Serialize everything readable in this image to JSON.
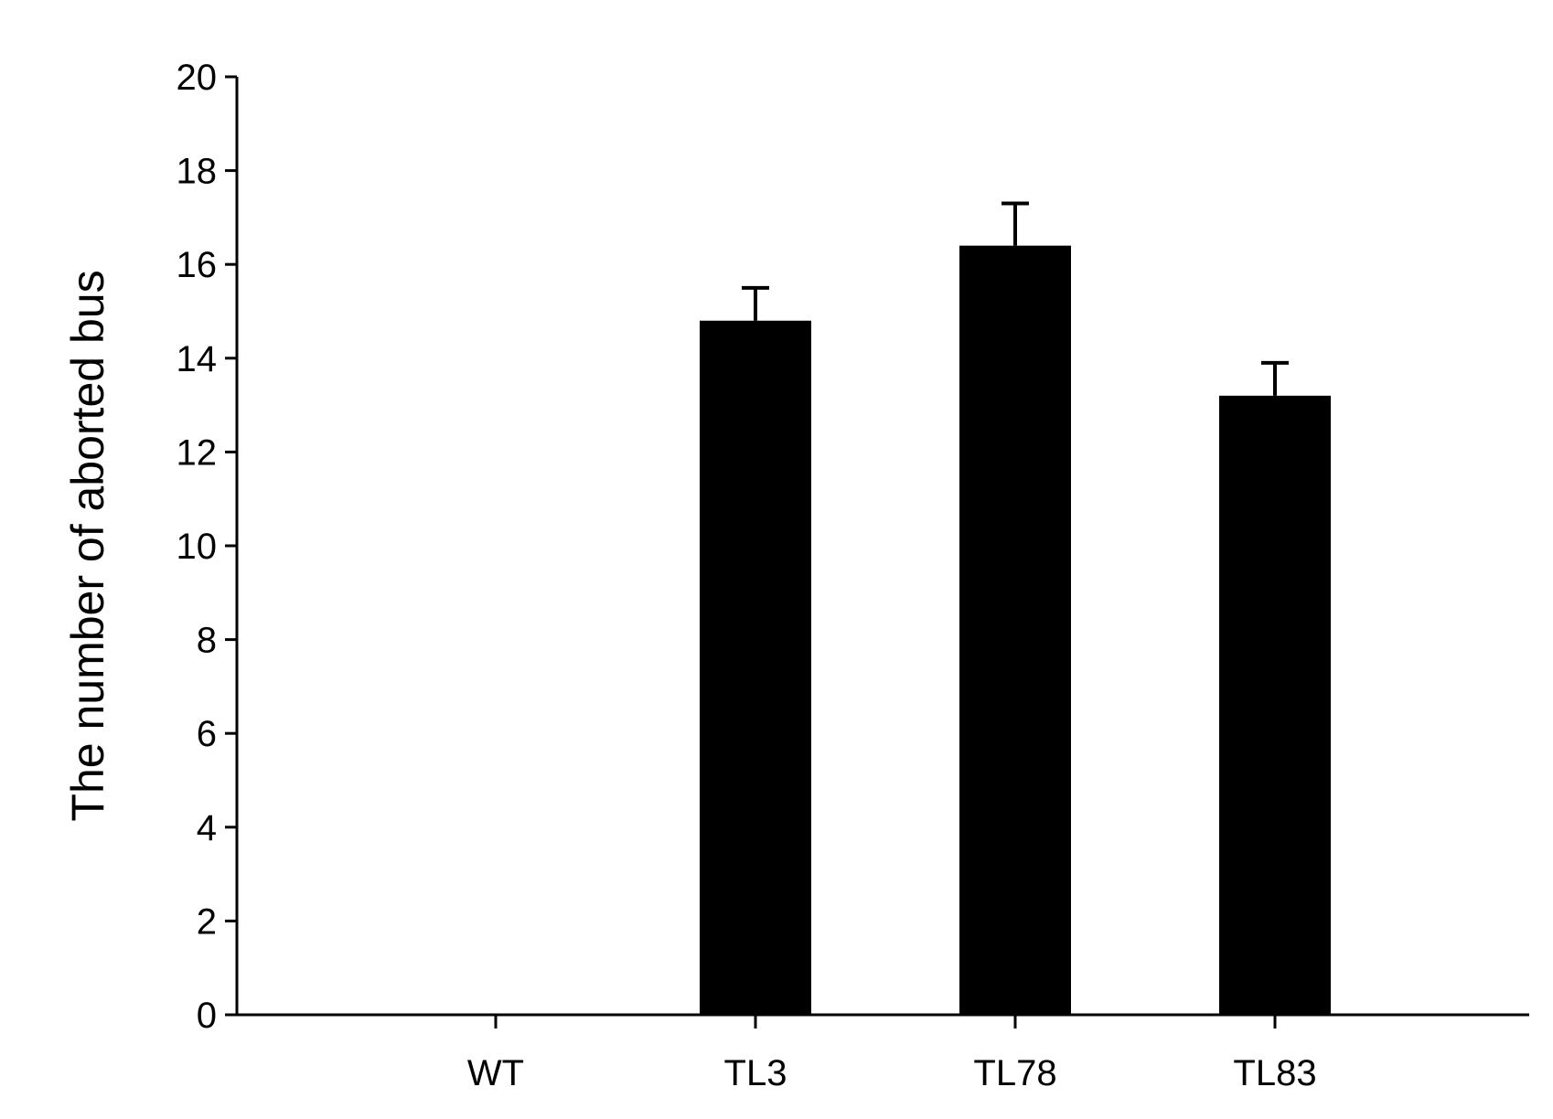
{
  "chart_data": {
    "type": "bar",
    "categories": [
      "WT",
      "TL3",
      "TL78",
      "TL83"
    ],
    "values": [
      0,
      14.8,
      16.4,
      13.2
    ],
    "error": [
      0,
      0.7,
      0.9,
      0.7
    ],
    "title": "",
    "xlabel": "",
    "ylabel": "The number of aborted bus",
    "ylim": [
      0,
      20
    ],
    "yticks": [
      0,
      2,
      4,
      6,
      8,
      10,
      12,
      14,
      16,
      18,
      20
    ],
    "grid": false,
    "legend": "none",
    "bar_color": "#000000",
    "axis_color": "#000000"
  }
}
